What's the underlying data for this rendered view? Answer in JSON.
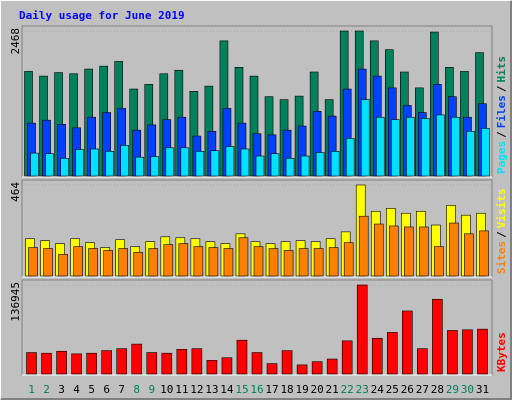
{
  "title": "Daily usage for June 2019",
  "legend_separator": "/",
  "chart_data": [
    {
      "type": "bar",
      "ylim": [
        0,
        2468
      ],
      "yticks": [
        2468
      ],
      "series": [
        {
          "name": "Hits",
          "color": "#00805c",
          "values": [
            1780,
            1700,
            1760,
            1740,
            1820,
            1870,
            1950,
            1480,
            1560,
            1740,
            1800,
            1440,
            1530,
            2300,
            1850,
            1700,
            1350,
            1300,
            1360,
            1770,
            1300,
            2468,
            2468,
            2300,
            2150,
            1770,
            1500,
            2450,
            1850,
            1780,
            2100
          ]
        },
        {
          "name": "Files",
          "color": "#0040ff",
          "values": [
            900,
            950,
            880,
            820,
            1000,
            1080,
            1150,
            780,
            870,
            960,
            1000,
            680,
            760,
            1150,
            900,
            720,
            700,
            780,
            850,
            1100,
            1020,
            1480,
            1820,
            1700,
            1500,
            1200,
            1080,
            1560,
            1350,
            1000,
            1230
          ]
        },
        {
          "name": "Pages",
          "color": "#00e0ff",
          "values": [
            390,
            380,
            300,
            450,
            460,
            420,
            520,
            320,
            330,
            480,
            480,
            420,
            430,
            500,
            460,
            340,
            380,
            300,
            340,
            400,
            420,
            640,
            1300,
            1000,
            960,
            1000,
            980,
            1040,
            1000,
            760,
            810
          ]
        }
      ]
    },
    {
      "type": "bar",
      "ylim": [
        0,
        464
      ],
      "yticks": [
        464
      ],
      "series": [
        {
          "name": "Visits",
          "color": "#ffff00",
          "values": [
            190,
            180,
            165,
            190,
            170,
            145,
            185,
            150,
            175,
            200,
            195,
            190,
            175,
            165,
            215,
            175,
            165,
            175,
            180,
            175,
            190,
            225,
            464,
            330,
            345,
            320,
            330,
            260,
            360,
            310,
            320
          ]
        },
        {
          "name": "Sites",
          "color": "#ff8000",
          "values": [
            145,
            140,
            110,
            150,
            140,
            130,
            140,
            120,
            140,
            160,
            165,
            150,
            145,
            140,
            195,
            150,
            140,
            130,
            140,
            140,
            145,
            170,
            305,
            265,
            255,
            250,
            250,
            150,
            270,
            215,
            230
          ]
        }
      ]
    },
    {
      "type": "bar",
      "ylim": [
        0,
        136945
      ],
      "yticks": [
        136945
      ],
      "categories": [
        "1",
        "2",
        "3",
        "4",
        "5",
        "6",
        "7",
        "8",
        "9",
        "10",
        "11",
        "12",
        "13",
        "14",
        "15",
        "16",
        "17",
        "18",
        "19",
        "20",
        "21",
        "22",
        "23",
        "24",
        "25",
        "26",
        "27",
        "28",
        "29",
        "30",
        "31"
      ],
      "category_colors": [
        "#00805c",
        "#00805c",
        "#000000",
        "#000000",
        "#000000",
        "#000000",
        "#000000",
        "#00805c",
        "#00805c",
        "#000000",
        "#000000",
        "#000000",
        "#000000",
        "#000000",
        "#00805c",
        "#00805c",
        "#000000",
        "#000000",
        "#000000",
        "#000000",
        "#000000",
        "#00805c",
        "#00805c",
        "#000000",
        "#000000",
        "#000000",
        "#000000",
        "#000000",
        "#00805c",
        "#00805c",
        "#000000"
      ],
      "series": [
        {
          "name": "KBytes",
          "color": "#ff0000",
          "values": [
            33000,
            32000,
            35000,
            31000,
            32000,
            36000,
            39000,
            46000,
            33000,
            32000,
            38000,
            39000,
            21000,
            25000,
            52000,
            33000,
            16000,
            36000,
            14000,
            19000,
            23000,
            51000,
            136945,
            55000,
            64000,
            97000,
            39000,
            115000,
            67000,
            68000,
            69000
          ]
        }
      ]
    }
  ]
}
